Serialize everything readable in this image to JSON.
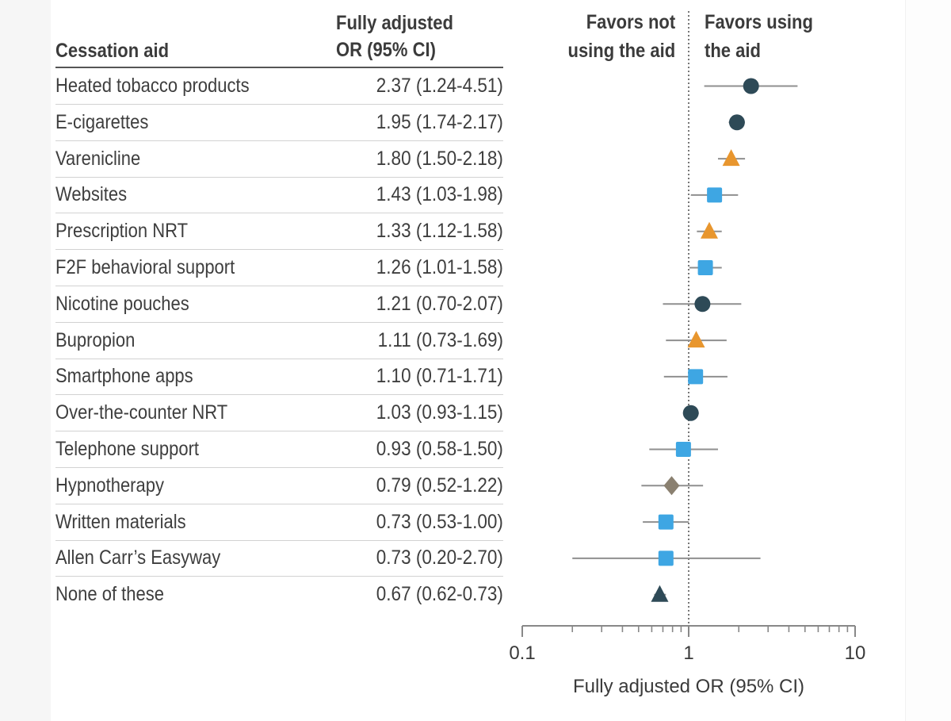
{
  "table": {
    "col_aid_header": "Cessation aid",
    "col_or_header_line1": "Fully adjusted",
    "col_or_header_line2": "OR (95% CI)"
  },
  "favor": {
    "not_line1": "Favors not",
    "not_line2": "using the aid",
    "using_line1": "Favors using",
    "using_line2": "the aid"
  },
  "chart_data": {
    "type": "forest",
    "title": "",
    "xlabel": "Fully adjusted OR (95% CI)",
    "ylabel": "Cessation aid",
    "x_scale": "log",
    "xlim": [
      0.1,
      10
    ],
    "reference_line": 1,
    "x_ticks_major": [
      "0.1",
      "1",
      "10"
    ],
    "legend_position": "none",
    "marker_styles": {
      "circle": "#2e4a57",
      "triangle_orange": "#e8962e",
      "square": "#3ea6e3",
      "diamond": "#8a8070",
      "triangle_dark": "#2e4a57"
    },
    "rows": [
      {
        "label": "Heated tobacco products",
        "or": 2.37,
        "lo": 1.24,
        "hi": 4.51,
        "text": "2.37 (1.24-4.51)",
        "marker": "circle"
      },
      {
        "label": "E-cigarettes",
        "or": 1.95,
        "lo": 1.74,
        "hi": 2.17,
        "text": "1.95 (1.74-2.17)",
        "marker": "circle"
      },
      {
        "label": "Varenicline",
        "or": 1.8,
        "lo": 1.5,
        "hi": 2.18,
        "text": "1.80 (1.50-2.18)",
        "marker": "triangle_orange"
      },
      {
        "label": "Websites",
        "or": 1.43,
        "lo": 1.03,
        "hi": 1.98,
        "text": "1.43 (1.03-1.98)",
        "marker": "square"
      },
      {
        "label": "Prescription NRT",
        "or": 1.33,
        "lo": 1.12,
        "hi": 1.58,
        "text": "1.33 (1.12-1.58)",
        "marker": "triangle_orange"
      },
      {
        "label": "F2F behavioral support",
        "or": 1.26,
        "lo": 1.01,
        "hi": 1.58,
        "text": "1.26 (1.01-1.58)",
        "marker": "square"
      },
      {
        "label": "Nicotine pouches",
        "or": 1.21,
        "lo": 0.7,
        "hi": 2.07,
        "text": "1.21 (0.70-2.07)",
        "marker": "circle"
      },
      {
        "label": "Bupropion",
        "or": 1.11,
        "lo": 0.73,
        "hi": 1.69,
        "text": "1.11 (0.73-1.69)",
        "marker": "triangle_orange"
      },
      {
        "label": "Smartphone apps",
        "or": 1.1,
        "lo": 0.71,
        "hi": 1.71,
        "text": "1.10 (0.71-1.71)",
        "marker": "square"
      },
      {
        "label": "Over-the-counter NRT",
        "or": 1.03,
        "lo": 0.93,
        "hi": 1.15,
        "text": "1.03 (0.93-1.15)",
        "marker": "circle"
      },
      {
        "label": "Telephone support",
        "or": 0.93,
        "lo": 0.58,
        "hi": 1.5,
        "text": "0.93 (0.58-1.50)",
        "marker": "square"
      },
      {
        "label": "Hypnotherapy",
        "or": 0.79,
        "lo": 0.52,
        "hi": 1.22,
        "text": "0.79 (0.52-1.22)",
        "marker": "diamond"
      },
      {
        "label": "Written materials",
        "or": 0.73,
        "lo": 0.53,
        "hi": 1.0,
        "text": "0.73 (0.53-1.00)",
        "marker": "square"
      },
      {
        "label": "Allen Carr’s Easyway",
        "or": 0.73,
        "lo": 0.2,
        "hi": 2.7,
        "text": "0.73 (0.20-2.70)",
        "marker": "square"
      },
      {
        "label": "None of these",
        "or": 0.67,
        "lo": 0.62,
        "hi": 0.73,
        "text": "0.67 (0.62-0.73)",
        "marker": "triangle_dark"
      }
    ]
  }
}
